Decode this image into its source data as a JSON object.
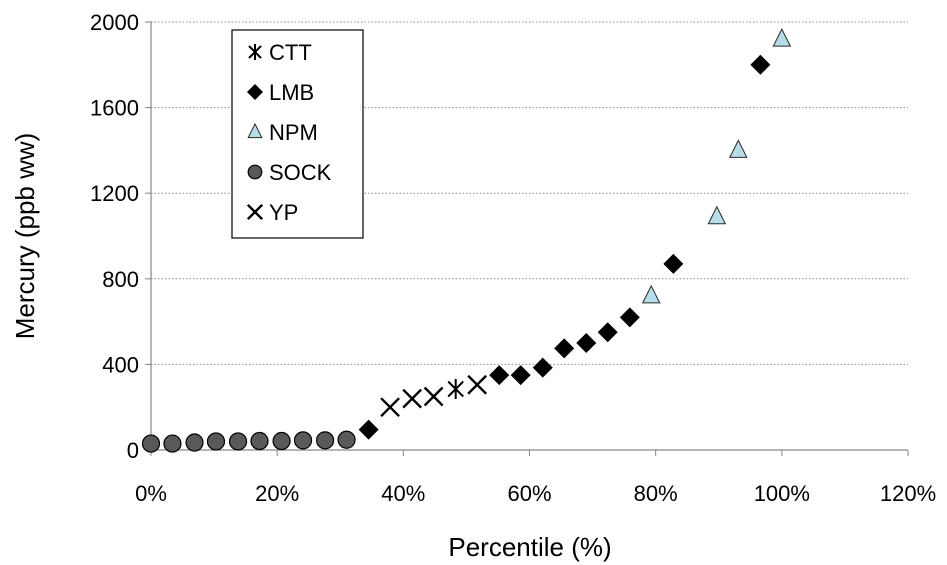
{
  "chart_data": {
    "type": "scatter",
    "xlabel": "Percentile (%)",
    "ylabel": "Mercury (ppb ww)",
    "xlim": [
      0,
      120
    ],
    "ylim": [
      0,
      2000
    ],
    "x_ticks": [
      "0%",
      "20%",
      "40%",
      "60%",
      "80%",
      "100%",
      "120%"
    ],
    "y_ticks": [
      "0",
      "400",
      "800",
      "1200",
      "1600",
      "2000"
    ],
    "grid": "horizontal dotted",
    "legend_position": "top-left",
    "series": [
      {
        "name": "CTT",
        "marker": "asterisk",
        "color": "#000000",
        "points": [
          [
            48.3,
            285
          ]
        ]
      },
      {
        "name": "LMB",
        "marker": "diamond",
        "color": "#000000",
        "points": [
          [
            34.5,
            95
          ],
          [
            55.2,
            350
          ],
          [
            58.6,
            350
          ],
          [
            62.1,
            385
          ],
          [
            65.5,
            475
          ],
          [
            69.0,
            500
          ],
          [
            72.4,
            550
          ],
          [
            75.9,
            620
          ],
          [
            82.8,
            870
          ],
          [
            96.6,
            1800
          ]
        ]
      },
      {
        "name": "NPM",
        "marker": "triangle",
        "color": "#b7dde8",
        "points": [
          [
            79.3,
            720
          ],
          [
            89.7,
            1090
          ],
          [
            93.1,
            1400
          ],
          [
            100.0,
            1920
          ]
        ]
      },
      {
        "name": "SOCK",
        "marker": "circle",
        "color": "#595959",
        "points": [
          [
            0.0,
            30
          ],
          [
            3.4,
            30
          ],
          [
            6.9,
            35
          ],
          [
            10.3,
            40
          ],
          [
            13.8,
            40
          ],
          [
            17.2,
            42
          ],
          [
            20.7,
            42
          ],
          [
            24.1,
            45
          ],
          [
            27.6,
            45
          ],
          [
            31.0,
            48
          ]
        ]
      },
      {
        "name": "YP",
        "marker": "x",
        "color": "#000000",
        "points": [
          [
            37.9,
            200
          ],
          [
            41.4,
            240
          ],
          [
            44.8,
            250
          ],
          [
            51.7,
            305
          ]
        ]
      }
    ]
  }
}
